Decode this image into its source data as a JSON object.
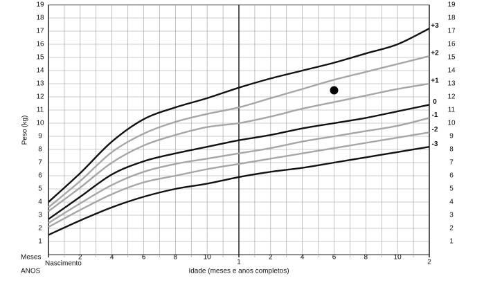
{
  "chart_data": {
    "type": "line",
    "ylabel": "Peso (kg)",
    "xlabel": "Idade (meses e anos completos)",
    "x_unit_label": "Meses",
    "x_year_label": "ANOS",
    "x": [
      0,
      2,
      4,
      6,
      8,
      10,
      12,
      14,
      16,
      18,
      20,
      22,
      24
    ],
    "series": [
      {
        "name": "+3",
        "color": "#111111",
        "values": [
          4.0,
          6.2,
          8.6,
          10.3,
          11.2,
          11.9,
          12.7,
          13.4,
          14.0,
          14.6,
          15.3,
          16.0,
          17.2
        ]
      },
      {
        "name": "+2",
        "color": "#a6a6a6",
        "values": [
          3.6,
          5.6,
          7.8,
          9.2,
          10.1,
          10.7,
          11.2,
          11.9,
          12.6,
          13.3,
          13.9,
          14.5,
          15.1
        ]
      },
      {
        "name": "+1",
        "color": "#a6a6a6",
        "values": [
          3.3,
          5.1,
          7.0,
          8.3,
          9.1,
          9.7,
          10.0,
          10.5,
          11.1,
          11.6,
          12.1,
          12.6,
          13.0
        ]
      },
      {
        "name": "0",
        "color": "#111111",
        "values": [
          2.7,
          4.4,
          6.1,
          7.1,
          7.7,
          8.2,
          8.7,
          9.1,
          9.6,
          10.0,
          10.4,
          10.9,
          11.4
        ]
      },
      {
        "name": "-1",
        "color": "#a6a6a6",
        "values": [
          2.4,
          3.9,
          5.3,
          6.3,
          6.9,
          7.3,
          7.7,
          8.1,
          8.6,
          9.0,
          9.4,
          9.8,
          10.4
        ]
      },
      {
        "name": "-2",
        "color": "#a6a6a6",
        "values": [
          2.1,
          3.4,
          4.6,
          5.5,
          6.0,
          6.5,
          6.9,
          7.3,
          7.7,
          8.1,
          8.5,
          8.9,
          9.3
        ]
      },
      {
        "name": "-3",
        "color": "#111111",
        "values": [
          1.5,
          2.6,
          3.6,
          4.4,
          5.0,
          5.4,
          5.9,
          6.3,
          6.6,
          7.0,
          7.4,
          7.8,
          8.2
        ]
      }
    ],
    "marker": {
      "x": 18,
      "y": 12.5,
      "color": "#000000"
    },
    "xlim": [
      0,
      24
    ],
    "ylim": [
      0,
      19
    ],
    "xticks": [
      {
        "value": 0,
        "label": "Nascimento"
      },
      2,
      4,
      6,
      8,
      10,
      {
        "value": 12,
        "label": "1"
      },
      {
        "value": 14,
        "label": "2"
      },
      {
        "value": 16,
        "label": "4"
      },
      {
        "value": 18,
        "label": "6"
      },
      {
        "value": 20,
        "label": "8"
      },
      {
        "value": 22,
        "label": "10"
      },
      {
        "value": 24,
        "label": "2"
      }
    ],
    "minor_xticks": [
      1,
      3,
      5,
      7,
      9,
      11,
      13,
      15,
      17,
      19,
      21,
      23
    ],
    "yticks": [
      1,
      2,
      3,
      4,
      5,
      6,
      7,
      8,
      9,
      10,
      11,
      12,
      13,
      14,
      15,
      16,
      17,
      18,
      19
    ],
    "grid": true
  }
}
